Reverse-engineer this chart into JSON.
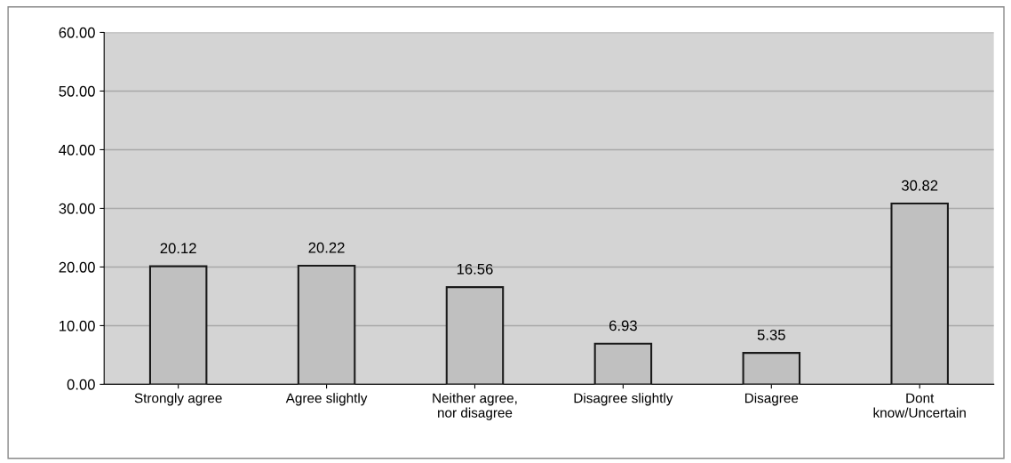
{
  "chart_data": {
    "type": "bar",
    "categories": [
      "Strongly agree",
      "Agree slightly",
      "Neither agree,\nnor disagree",
      "Disagree slightly",
      "Disagree",
      "Dont\nknow/Uncertain"
    ],
    "values": [
      20.12,
      20.22,
      16.56,
      6.93,
      5.35,
      30.82
    ],
    "color": "#c0c0c0",
    "ylim": [
      0,
      60
    ],
    "yticks": [
      {
        "value": 0,
        "label": "0.00"
      },
      {
        "value": 10,
        "label": "10.00"
      },
      {
        "value": 20,
        "label": "20.00"
      },
      {
        "value": 30,
        "label": "30.00"
      },
      {
        "value": 40,
        "label": "40.00"
      },
      {
        "value": 50,
        "label": "50.00"
      },
      {
        "value": 60,
        "label": "60.00"
      }
    ],
    "grid": "y",
    "data_labels": true,
    "legend": false
  }
}
